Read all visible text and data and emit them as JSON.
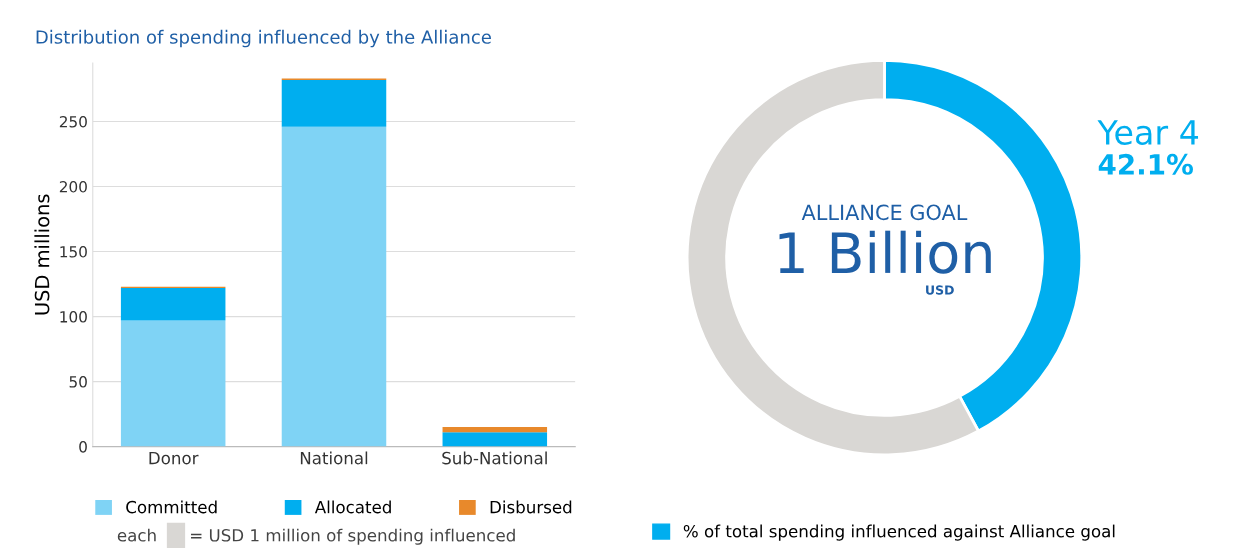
{
  "chart_data": [
    {
      "type": "bar",
      "title": "Distribution of spending influenced by the Alliance",
      "ylabel": "USD millions",
      "categories": [
        "Donor",
        "National",
        "Sub-National"
      ],
      "stacked": true,
      "series": [
        {
          "name": "Committed",
          "color": "#7fd3f5",
          "values": [
            97,
            246,
            0
          ]
        },
        {
          "name": "Allocated",
          "color": "#00aeef",
          "values": [
            25,
            36,
            11
          ]
        },
        {
          "name": "Disbursed",
          "color": "#e8892b",
          "values": [
            1,
            1,
            4
          ]
        }
      ],
      "ylim": [
        0,
        295
      ],
      "yticks": [
        0,
        50,
        100,
        150,
        200,
        250
      ],
      "grid": "y",
      "legend": "bottom",
      "annotations": [
        "each",
        "= USD 1 million of spending influenced"
      ]
    },
    {
      "type": "donut",
      "categories": [
        "% of total spending influenced against Alliance goal",
        null
      ],
      "values": [
        42.1,
        57.9
      ],
      "colors": [
        "#00aeef",
        "#d9d7d4"
      ],
      "legend": "bottom",
      "annotations": [
        "Year 4",
        "42.1%",
        "ALLIANCE GOAL",
        "1 Billion",
        "USD"
      ]
    }
  ]
}
